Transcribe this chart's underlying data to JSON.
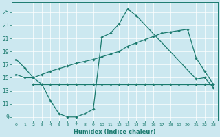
{
  "xlabel": "Humidex (Indice chaleur)",
  "bg_color": "#cce8f0",
  "line_color": "#1a7a6e",
  "xticks": [
    0,
    1,
    2,
    3,
    4,
    5,
    6,
    7,
    8,
    9,
    10,
    11,
    12,
    13,
    14,
    15,
    16,
    17,
    18,
    19,
    20,
    21,
    22,
    23
  ],
  "yticks": [
    9,
    11,
    13,
    15,
    17,
    19,
    21,
    23,
    25
  ],
  "xlim": [
    -0.5,
    23.5
  ],
  "ylim": [
    8.5,
    26.5
  ],
  "curve1_x": [
    0,
    1,
    2,
    3,
    4,
    5,
    6,
    7,
    8,
    9,
    10,
    11,
    12,
    13,
    14,
    21,
    22,
    23
  ],
  "curve1_y": [
    17.8,
    16.5,
    15.0,
    14.0,
    11.5,
    9.5,
    9.0,
    9.0,
    9.5,
    10.2,
    21.2,
    21.8,
    23.2,
    25.5,
    24.5,
    14.8,
    15.0,
    13.5
  ],
  "curve2_x": [
    2,
    3,
    4,
    5,
    6,
    7,
    8,
    9,
    10,
    11,
    12,
    13,
    14,
    15,
    16,
    17,
    18,
    19,
    20,
    21,
    22,
    23
  ],
  "curve2_y": [
    14.0,
    14.0,
    14.0,
    14.0,
    14.0,
    14.0,
    14.0,
    14.0,
    14.0,
    14.0,
    14.0,
    14.0,
    14.0,
    14.0,
    14.0,
    14.0,
    14.0,
    14.0,
    14.0,
    14.0,
    14.0,
    14.0
  ],
  "curve3_x": [
    0,
    1,
    2,
    3,
    4,
    5,
    6,
    7,
    8,
    9,
    10,
    11,
    12,
    13,
    14,
    15,
    16,
    17,
    18,
    19,
    20,
    21,
    22,
    23
  ],
  "curve3_y": [
    15.5,
    15.0,
    15.0,
    15.5,
    16.0,
    16.4,
    16.8,
    17.2,
    17.5,
    17.8,
    18.2,
    18.6,
    19.0,
    19.8,
    20.3,
    20.8,
    21.3,
    21.8,
    22.0,
    22.2,
    22.4,
    18.0,
    16.0,
    14.0
  ]
}
